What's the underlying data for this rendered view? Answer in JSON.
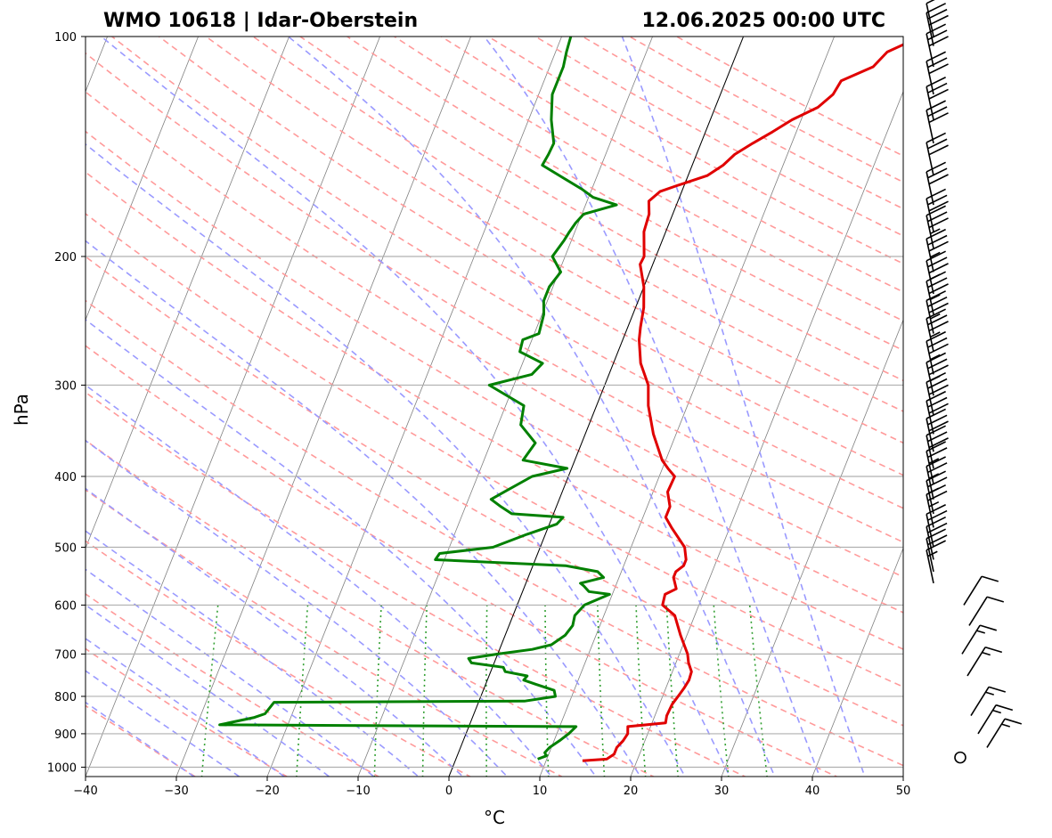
{
  "chart_data": {
    "type": "line",
    "title_left": "WMO 10618 | Idar-Oberstein",
    "title_right": "12.06.2025 00:00 UTC",
    "xlabel": "°C",
    "ylabel": "hPa",
    "xlim": [
      -40,
      50
    ],
    "ylim": [
      1030,
      100
    ],
    "log_pressure_axis": true,
    "skew_per_log_decade": 3.2,
    "x_ticks": [
      -40,
      -30,
      -20,
      -10,
      0,
      10,
      20,
      30,
      40,
      50
    ],
    "x_tick_labels": [
      "−40",
      "−30",
      "−20",
      "−10",
      "0",
      "10",
      "20",
      "30",
      "40",
      "50"
    ],
    "y_ticks": [
      100,
      200,
      300,
      400,
      500,
      600,
      700,
      800,
      900,
      1000
    ],
    "y_tick_labels": [
      "100",
      "200",
      "300",
      "400",
      "500",
      "600",
      "700",
      "800",
      "900",
      "1000"
    ],
    "grid": true,
    "colors": {
      "temperature": "#e00000",
      "dewpoint": "#008000",
      "isotherms": "#808080",
      "dry_adiabats": "#ff9a9a",
      "moist_adiabats": "#9a9aff",
      "mixing_ratio": "#33a033",
      "zero_isotherm": "#000000",
      "wind_barbs": "#000000"
    },
    "series": [
      {
        "key": "temperature",
        "points": [
          [
            980,
            14.0
          ],
          [
            975,
            16.6
          ],
          [
            960,
            17.2
          ],
          [
            940,
            17.2
          ],
          [
            920,
            17.6
          ],
          [
            900,
            17.8
          ],
          [
            880,
            17.5
          ],
          [
            870,
            21.5
          ],
          [
            850,
            21.3
          ],
          [
            820,
            21.4
          ],
          [
            800,
            21.7
          ],
          [
            780,
            22.0
          ],
          [
            760,
            22.2
          ],
          [
            740,
            22.1
          ],
          [
            720,
            21.4
          ],
          [
            700,
            20.9
          ],
          [
            660,
            19.3
          ],
          [
            620,
            17.8
          ],
          [
            600,
            16.0
          ],
          [
            580,
            15.8
          ],
          [
            570,
            16.8
          ],
          [
            550,
            16.0
          ],
          [
            540,
            16.0
          ],
          [
            530,
            16.6
          ],
          [
            520,
            16.6
          ],
          [
            500,
            15.9
          ],
          [
            470,
            13.6
          ],
          [
            455,
            12.5
          ],
          [
            440,
            12.5
          ],
          [
            420,
            11.6
          ],
          [
            400,
            11.7
          ],
          [
            390,
            10.6
          ],
          [
            380,
            9.6
          ],
          [
            350,
            7.5
          ],
          [
            320,
            5.7
          ],
          [
            300,
            4.8
          ],
          [
            280,
            3.0
          ],
          [
            260,
            1.8
          ],
          [
            250,
            1.4
          ],
          [
            235,
            0.9
          ],
          [
            220,
            0.0
          ],
          [
            205,
            -1.4
          ],
          [
            200,
            -1.3
          ],
          [
            185,
            -2.4
          ],
          [
            175,
            -2.6
          ],
          [
            168,
            -3.2
          ],
          [
            163,
            -2.4
          ],
          [
            160,
            -0.8
          ],
          [
            155,
            2.1
          ],
          [
            150,
            3.4
          ],
          [
            145,
            4.2
          ],
          [
            140,
            5.7
          ],
          [
            135,
            7.4
          ],
          [
            130,
            9.0
          ],
          [
            125,
            11.3
          ],
          [
            120,
            12.4
          ],
          [
            115,
            12.7
          ],
          [
            110,
            15.6
          ],
          [
            105,
            16.5
          ],
          [
            102,
            18.3
          ],
          [
            100,
            19.6
          ]
        ]
      },
      {
        "key": "dewpoint",
        "points": [
          [
            975,
            9.0
          ],
          [
            965,
            9.8
          ],
          [
            955,
            9.5
          ],
          [
            940,
            9.8
          ],
          [
            920,
            10.6
          ],
          [
            900,
            11.3
          ],
          [
            880,
            11.8
          ],
          [
            875,
            -27.5
          ],
          [
            855,
            -24.0
          ],
          [
            845,
            -23.0
          ],
          [
            815,
            -22.5
          ],
          [
            812,
            5.0
          ],
          [
            800,
            8.2
          ],
          [
            785,
            7.8
          ],
          [
            770,
            5.5
          ],
          [
            760,
            4.0
          ],
          [
            750,
            4.2
          ],
          [
            740,
            1.6
          ],
          [
            730,
            1.2
          ],
          [
            720,
            -2.5
          ],
          [
            710,
            -3.0
          ],
          [
            700,
            0.0
          ],
          [
            690,
            3.6
          ],
          [
            680,
            5.5
          ],
          [
            660,
            6.6
          ],
          [
            640,
            7.0
          ],
          [
            620,
            6.8
          ],
          [
            600,
            7.4
          ],
          [
            580,
            9.7
          ],
          [
            575,
            7.3
          ],
          [
            565,
            6.5
          ],
          [
            560,
            6.0
          ],
          [
            550,
            8.3
          ],
          [
            540,
            7.4
          ],
          [
            530,
            3.6
          ],
          [
            520,
            -11.0
          ],
          [
            510,
            -10.8
          ],
          [
            500,
            -5.2
          ],
          [
            480,
            -2.0
          ],
          [
            465,
            0.8
          ],
          [
            455,
            1.2
          ],
          [
            450,
            -4.6
          ],
          [
            440,
            -6.1
          ],
          [
            430,
            -7.5
          ],
          [
            420,
            -6.4
          ],
          [
            400,
            -4.0
          ],
          [
            390,
            -0.5
          ],
          [
            380,
            -5.7
          ],
          [
            360,
            -5.1
          ],
          [
            340,
            -7.5
          ],
          [
            320,
            -8.0
          ],
          [
            300,
            -12.7
          ],
          [
            290,
            -8.5
          ],
          [
            280,
            -7.8
          ],
          [
            270,
            -10.8
          ],
          [
            260,
            -11.0
          ],
          [
            255,
            -9.5
          ],
          [
            240,
            -9.8
          ],
          [
            230,
            -10.4
          ],
          [
            220,
            -10.4
          ],
          [
            210,
            -9.8
          ],
          [
            200,
            -11.4
          ],
          [
            190,
            -10.8
          ],
          [
            185,
            -10.6
          ],
          [
            180,
            -10.3
          ],
          [
            175,
            -9.8
          ],
          [
            170,
            -6.6
          ],
          [
            166,
            -9.5
          ],
          [
            162,
            -11.0
          ],
          [
            150,
            -16.5
          ],
          [
            145,
            -16.3
          ],
          [
            140,
            -16.2
          ],
          [
            130,
            -17.5
          ],
          [
            120,
            -18.5
          ],
          [
            110,
            -18.5
          ],
          [
            105,
            -18.8
          ],
          [
            100,
            -19.0
          ]
        ]
      }
    ],
    "wind_barbs": [
      {
        "p": 970,
        "speed_kt": 0
      },
      {
        "p": 940,
        "speed_kt": 15
      },
      {
        "p": 900,
        "speed_kt": 15
      },
      {
        "p": 850,
        "speed_kt": 15
      },
      {
        "p": 750,
        "speed_kt": 15
      },
      {
        "p": 700,
        "speed_kt": 15
      },
      {
        "p": 640,
        "speed_kt": 10
      },
      {
        "p": 600,
        "speed_kt": 10
      },
      {
        "p": 560,
        "speed_kt": 15
      },
      {
        "p": 540,
        "speed_kt": 20
      },
      {
        "p": 520,
        "speed_kt": 20
      },
      {
        "p": 500,
        "speed_kt": 20
      },
      {
        "p": 470,
        "speed_kt": 25
      },
      {
        "p": 450,
        "speed_kt": 25
      },
      {
        "p": 430,
        "speed_kt": 25
      },
      {
        "p": 410,
        "speed_kt": 25
      },
      {
        "p": 390,
        "speed_kt": 30
      },
      {
        "p": 370,
        "speed_kt": 30
      },
      {
        "p": 350,
        "speed_kt": 30
      },
      {
        "p": 330,
        "speed_kt": 30
      },
      {
        "p": 310,
        "speed_kt": 35
      },
      {
        "p": 290,
        "speed_kt": 35
      },
      {
        "p": 270,
        "speed_kt": 35
      },
      {
        "p": 255,
        "speed_kt": 35
      },
      {
        "p": 240,
        "speed_kt": 35
      },
      {
        "p": 225,
        "speed_kt": 35
      },
      {
        "p": 210,
        "speed_kt": 35
      },
      {
        "p": 195,
        "speed_kt": 35
      },
      {
        "p": 185,
        "speed_kt": 30
      },
      {
        "p": 170,
        "speed_kt": 30
      },
      {
        "p": 155,
        "speed_kt": 30
      },
      {
        "p": 140,
        "speed_kt": 30
      },
      {
        "p": 130,
        "speed_kt": 30
      },
      {
        "p": 120,
        "speed_kt": 30
      },
      {
        "p": 110,
        "speed_kt": 30
      },
      {
        "p": 103,
        "speed_kt": 30
      },
      {
        "p": 100,
        "speed_kt": 5
      }
    ]
  }
}
